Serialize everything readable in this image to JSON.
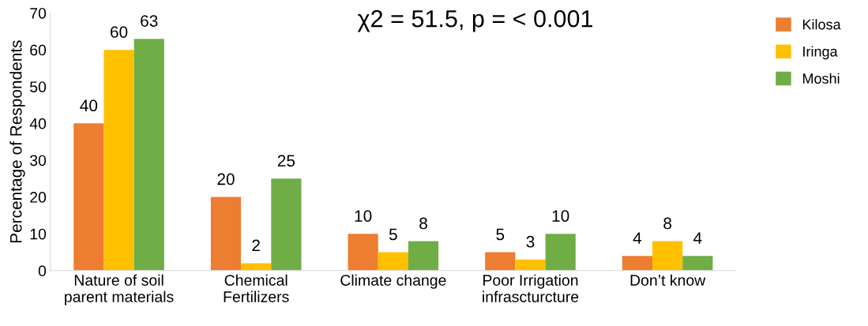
{
  "chart_data": {
    "type": "bar",
    "categories": [
      "Nature of soil\nparent materials",
      "Chemical\nFertilizers",
      "Climate change",
      "Poor Irrigation\ninfrascturcture",
      "Don’t know"
    ],
    "series": [
      {
        "name": "Kilosa",
        "color": "#ed7d31",
        "values": [
          40,
          20,
          10,
          5,
          4
        ]
      },
      {
        "name": "Iringa",
        "color": "#ffc000",
        "values": [
          60,
          2,
          5,
          3,
          8
        ]
      },
      {
        "name": "Moshi",
        "color": "#70ad47",
        "values": [
          63,
          25,
          8,
          10,
          4
        ]
      }
    ],
    "ylabel": "Percentage of Respondents",
    "annotations": [
      "χ2 = 51.5, p = < 0.001"
    ],
    "ylim": [
      0,
      70
    ],
    "yticks": [
      0,
      10,
      20,
      30,
      40,
      50,
      60,
      70
    ],
    "data_labels": true,
    "grid": false,
    "legend": "top right"
  }
}
